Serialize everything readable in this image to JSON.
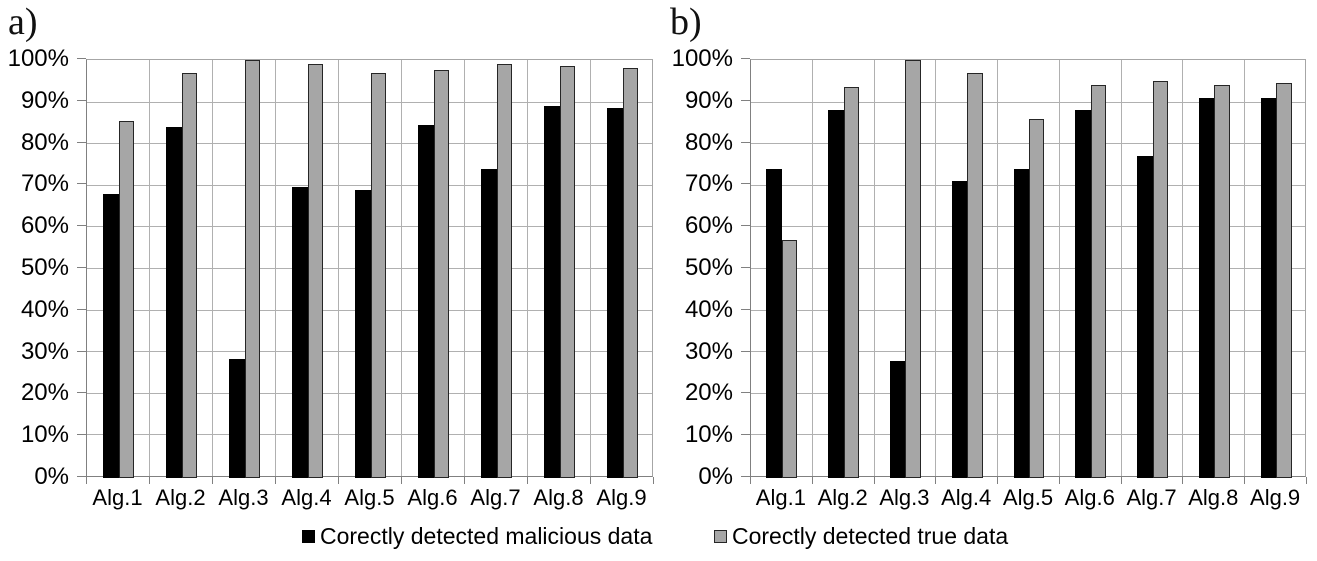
{
  "colors": {
    "malicious": "#000000",
    "true_data": "#a6a6a6",
    "grid": "#b0b0b0",
    "axis": "#808080",
    "bar_border_black": "#000000",
    "bar_border_gray": "#262626"
  },
  "legend": [
    {
      "label": "Corectly detected malicious data",
      "swatch": "black-square"
    },
    {
      "label": "Corectly detected true data",
      "swatch": "gray-square"
    }
  ],
  "chart_data": [
    {
      "type": "bar",
      "panel_label": "a)",
      "title": "",
      "xlabel": "",
      "ylabel": "",
      "ylim": [
        0,
        100
      ],
      "grid": true,
      "legend_position": "bottom",
      "y_tick_labels": [
        "0%",
        "10%",
        "20%",
        "30%",
        "40%",
        "50%",
        "60%",
        "70%",
        "80%",
        "90%",
        "100%"
      ],
      "categories": [
        "Alg.1",
        "Alg.2",
        "Alg.3",
        "Alg.4",
        "Alg.5",
        "Alg.6",
        "Alg.7",
        "Alg.8",
        "Alg.9"
      ],
      "series": [
        {
          "name": "Corectly detected malicious data",
          "color": "#000000",
          "values": [
            68,
            84,
            28.5,
            69.5,
            69,
            84.5,
            74,
            89,
            88.5
          ]
        },
        {
          "name": "Corectly detected true data",
          "color": "#a6a6a6",
          "values": [
            85.5,
            97,
            100,
            99,
            97,
            97.5,
            99,
            98.5,
            98
          ]
        }
      ]
    },
    {
      "type": "bar",
      "panel_label": "b)",
      "title": "",
      "xlabel": "",
      "ylabel": "",
      "ylim": [
        0,
        100
      ],
      "grid": true,
      "legend_position": "bottom",
      "y_tick_labels": [
        "0%",
        "10%",
        "20%",
        "30%",
        "40%",
        "50%",
        "60%",
        "70%",
        "80%",
        "90%",
        "100%"
      ],
      "categories": [
        "Alg.1",
        "Alg.2",
        "Alg.3",
        "Alg.4",
        "Alg.5",
        "Alg.6",
        "Alg.7",
        "Alg.8",
        "Alg.9"
      ],
      "series": [
        {
          "name": "Corectly detected malicious data",
          "color": "#000000",
          "values": [
            74,
            88,
            28,
            71,
            74,
            88,
            77,
            91,
            91
          ]
        },
        {
          "name": "Corectly detected true data",
          "color": "#a6a6a6",
          "values": [
            57,
            93.5,
            100,
            97,
            86,
            94,
            95,
            94,
            94.5
          ]
        }
      ]
    }
  ]
}
